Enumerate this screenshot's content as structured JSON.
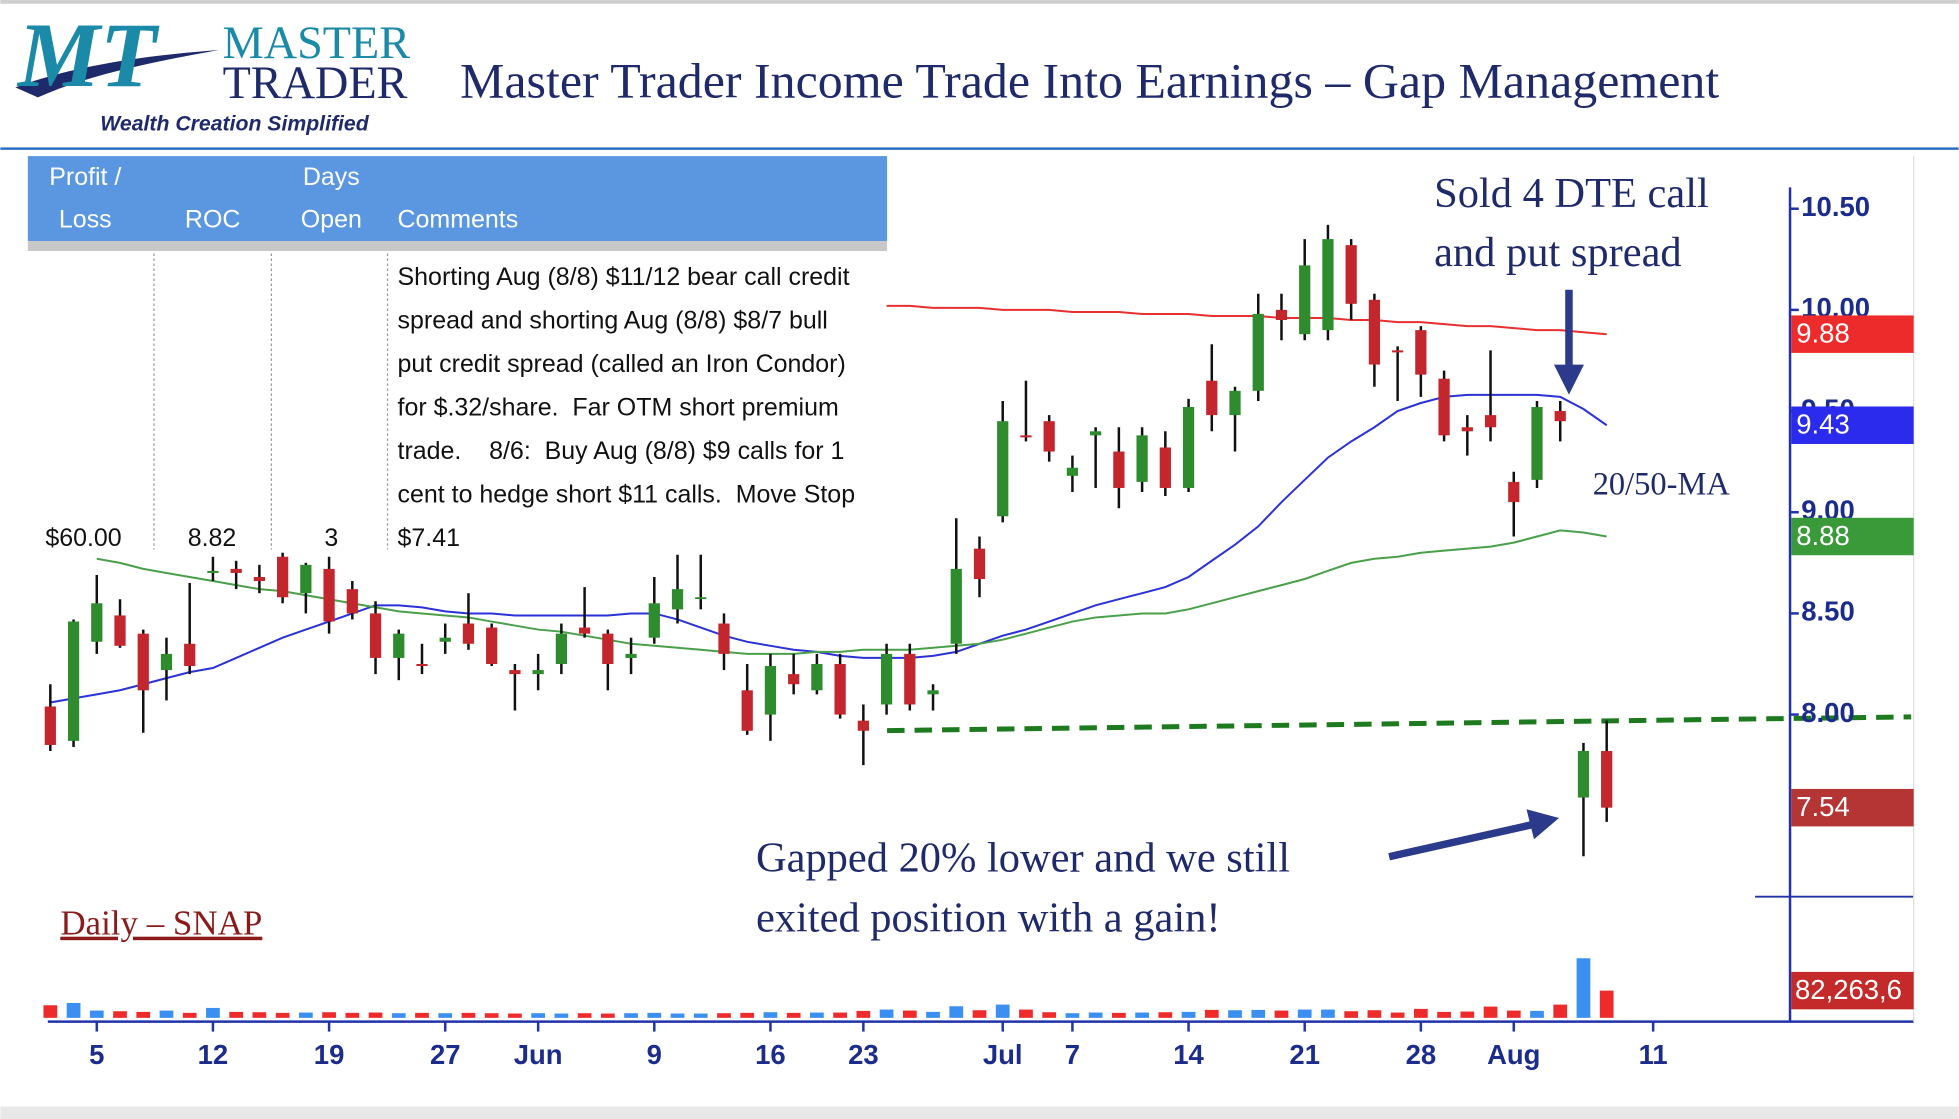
{
  "header": {
    "logo_mark": "MT",
    "logo_top": "MASTER",
    "logo_bottom": "TRADER",
    "tagline": "Wealth Creation Simplified",
    "title": "Master Trader Income Trade Into Earnings – Gap Management"
  },
  "table": {
    "headers": [
      [
        "Profit /",
        "Loss"
      ],
      [
        "ROC"
      ],
      [
        "Days",
        "Open"
      ],
      [
        "Comments"
      ]
    ],
    "row": [
      "$60.00",
      "8.82",
      "3"
    ],
    "comment_lines": [
      "Shorting Aug (8/8) $11/12 bear call credit",
      "spread and shorting Aug (8/8) $8/7 bull",
      "put credit spread (called an Iron Condor)",
      "for $.32/share.  Far OTM short premium",
      "trade.    8/6:  Buy Aug (8/8) $9 calls for 1",
      "cent to hedge short $11 calls.  Move Stop",
      "$7.41"
    ]
  },
  "chart_data": {
    "type": "candlestick",
    "label": "Daily – SNAP",
    "annotations": {
      "sold": [
        "Sold 4 DTE call",
        "and put spread"
      ],
      "ma": "20/50-MA",
      "gap": [
        "Gapped 20% lower and we still",
        "exited position with a gain!"
      ]
    },
    "categories": [
      null,
      null,
      "5",
      null,
      null,
      null,
      null,
      "12",
      null,
      null,
      null,
      null,
      "19",
      null,
      null,
      null,
      null,
      "27",
      null,
      null,
      null,
      "Jun",
      null,
      null,
      null,
      null,
      "9",
      null,
      null,
      null,
      null,
      "16",
      null,
      null,
      null,
      "23",
      null,
      null,
      null,
      null,
      null,
      "Jul",
      null,
      null,
      "7",
      null,
      null,
      null,
      null,
      "14",
      null,
      null,
      null,
      null,
      "21",
      null,
      null,
      null,
      null,
      "28",
      null,
      null,
      null,
      "Aug",
      null,
      null,
      null,
      null,
      null,
      "11",
      null,
      null,
      null,
      null,
      null
    ],
    "open": [
      8.04,
      7.87,
      8.36,
      8.49,
      8.4,
      8.22,
      8.35,
      8.7,
      8.72,
      8.68,
      8.78,
      8.6,
      8.72,
      8.62,
      8.5,
      8.28,
      8.25,
      8.36,
      8.45,
      8.43,
      8.22,
      8.2,
      8.25,
      8.43,
      8.4,
      8.28,
      8.38,
      8.52,
      8.58,
      8.45,
      8.12,
      8.0,
      8.2,
      8.12,
      8.25,
      7.97,
      8.05,
      8.3,
      8.1,
      8.35,
      8.82,
      8.98,
      9.38,
      9.45,
      9.18,
      9.38,
      9.3,
      9.15,
      9.32,
      9.12,
      9.65,
      9.48,
      9.6,
      10.0,
      9.88,
      9.9,
      10.32,
      10.05,
      9.8,
      9.9,
      9.66,
      9.42,
      9.48,
      9.15,
      9.16,
      9.5,
      7.59,
      7.82,
      null,
      null,
      null,
      null,
      null,
      null,
      null
    ],
    "high": [
      8.15,
      8.47,
      8.69,
      8.57,
      8.42,
      8.38,
      8.65,
      8.78,
      8.76,
      8.74,
      8.8,
      8.75,
      8.78,
      8.66,
      8.56,
      8.42,
      8.35,
      8.45,
      8.6,
      8.45,
      8.25,
      8.3,
      8.45,
      8.63,
      8.42,
      8.38,
      8.68,
      8.79,
      8.79,
      8.5,
      8.25,
      8.3,
      8.3,
      8.3,
      8.3,
      8.05,
      8.35,
      8.35,
      8.15,
      8.97,
      8.88,
      9.55,
      9.65,
      9.48,
      9.28,
      9.42,
      9.42,
      9.42,
      9.4,
      9.56,
      9.83,
      9.62,
      10.08,
      10.08,
      10.35,
      10.42,
      10.35,
      10.08,
      9.82,
      9.92,
      9.7,
      9.48,
      9.8,
      9.2,
      9.55,
      9.55,
      7.86,
      7.97,
      null,
      null,
      null,
      null,
      null,
      null,
      null
    ],
    "low": [
      7.82,
      7.84,
      8.3,
      8.33,
      7.91,
      8.07,
      8.2,
      8.66,
      8.62,
      8.6,
      8.55,
      8.5,
      8.4,
      8.47,
      8.2,
      8.17,
      8.2,
      8.3,
      8.32,
      8.24,
      8.02,
      8.12,
      8.2,
      8.38,
      8.12,
      8.2,
      8.35,
      8.45,
      8.52,
      8.22,
      7.9,
      7.87,
      8.1,
      8.1,
      7.98,
      7.75,
      8.0,
      8.02,
      8.02,
      8.3,
      8.58,
      8.95,
      9.35,
      9.25,
      9.1,
      9.12,
      9.02,
      9.1,
      9.08,
      9.1,
      9.4,
      9.3,
      9.55,
      9.85,
      9.85,
      9.85,
      9.95,
      9.62,
      9.55,
      9.57,
      9.35,
      9.28,
      9.35,
      8.88,
      9.12,
      9.35,
      7.3,
      7.47,
      null,
      null,
      null,
      null,
      null,
      null,
      null
    ],
    "close": [
      7.85,
      8.46,
      8.55,
      8.34,
      8.12,
      8.3,
      8.24,
      8.71,
      8.7,
      8.66,
      8.58,
      8.74,
      8.46,
      8.5,
      8.28,
      8.4,
      8.24,
      8.38,
      8.35,
      8.25,
      8.2,
      8.22,
      8.4,
      8.4,
      8.25,
      8.3,
      8.55,
      8.62,
      8.58,
      8.3,
      7.92,
      8.24,
      8.15,
      8.25,
      8.0,
      7.92,
      8.3,
      8.05,
      8.12,
      8.72,
      8.67,
      9.45,
      9.37,
      9.3,
      9.22,
      9.4,
      9.12,
      9.38,
      9.12,
      9.52,
      9.48,
      9.6,
      9.98,
      9.95,
      10.22,
      10.35,
      10.03,
      9.73,
      9.79,
      9.68,
      9.38,
      9.4,
      9.42,
      9.05,
      9.52,
      9.45,
      7.82,
      7.54,
      null,
      null,
      null,
      null,
      null,
      null,
      null
    ],
    "up_color": "#2e8b2e",
    "down_color": "#c3262c",
    "moving_averages": [
      {
        "color": "#2a32d8",
        "values": [
          8.06,
          8.08,
          8.1,
          8.12,
          8.15,
          8.18,
          8.21,
          8.23,
          8.28,
          8.33,
          8.38,
          8.42,
          8.46,
          8.5,
          8.54,
          8.54,
          8.53,
          8.51,
          8.5,
          8.5,
          8.49,
          8.49,
          8.49,
          8.49,
          8.49,
          8.5,
          8.5,
          8.47,
          8.43,
          8.39,
          8.36,
          8.34,
          8.32,
          8.31,
          8.29,
          8.28,
          8.28,
          8.28,
          8.29,
          8.31,
          8.35,
          8.39,
          8.42,
          8.46,
          8.5,
          8.54,
          8.57,
          8.6,
          8.63,
          8.68,
          8.76,
          8.84,
          8.93,
          9.05,
          9.16,
          9.27,
          9.35,
          9.42,
          9.5,
          9.54,
          9.57,
          9.58,
          9.58,
          9.58,
          9.58,
          9.57,
          9.51,
          9.43,
          null,
          null,
          null,
          null,
          null,
          null,
          null
        ]
      },
      {
        "color": "#4aa04a",
        "values": [
          null,
          null,
          8.77,
          8.75,
          8.72,
          8.7,
          8.68,
          8.66,
          8.64,
          8.62,
          8.61,
          8.59,
          8.57,
          8.55,
          8.53,
          8.51,
          8.5,
          8.49,
          8.48,
          8.46,
          8.44,
          8.42,
          8.41,
          8.39,
          8.37,
          8.35,
          8.34,
          8.33,
          8.32,
          8.31,
          8.3,
          8.3,
          8.3,
          8.31,
          8.31,
          8.32,
          8.32,
          8.32,
          8.33,
          8.34,
          8.35,
          8.37,
          8.4,
          8.43,
          8.46,
          8.48,
          8.49,
          8.5,
          8.5,
          8.52,
          8.55,
          8.58,
          8.61,
          8.64,
          8.67,
          8.71,
          8.75,
          8.77,
          8.78,
          8.8,
          8.81,
          8.82,
          8.83,
          8.85,
          8.88,
          8.91,
          8.9,
          8.88,
          null,
          null,
          null,
          null,
          null,
          null,
          null
        ]
      },
      {
        "color": "#e83030",
        "values": [
          null,
          null,
          null,
          null,
          null,
          null,
          null,
          null,
          null,
          null,
          null,
          null,
          null,
          null,
          null,
          null,
          null,
          null,
          null,
          null,
          null,
          null,
          null,
          null,
          null,
          null,
          null,
          null,
          null,
          null,
          null,
          null,
          null,
          null,
          null,
          null,
          10.02,
          10.02,
          10.01,
          10.01,
          10.01,
          10.0,
          10.0,
          10.0,
          9.99,
          9.99,
          9.99,
          9.98,
          9.98,
          9.98,
          9.97,
          9.97,
          9.97,
          9.96,
          9.96,
          9.96,
          9.95,
          9.95,
          9.94,
          9.94,
          9.93,
          9.92,
          9.92,
          9.91,
          9.9,
          9.9,
          9.89,
          9.88,
          null,
          null,
          null,
          null,
          null,
          null,
          null
        ]
      }
    ],
    "ylim": [
      7.1,
      10.76
    ],
    "yticks": [
      {
        "value": 8,
        "label": "8.00"
      },
      {
        "value": 8.5,
        "label": "8.50"
      },
      {
        "value": 9,
        "label": "9.00"
      },
      {
        "value": 9.5,
        "label": "9.50"
      },
      {
        "value": 10,
        "label": "10.00"
      },
      {
        "value": 10.5,
        "label": "10.50"
      }
    ],
    "price_labels": [
      {
        "value": 9.88,
        "color": "#ee2b2b"
      },
      {
        "value": 9.43,
        "color": "#2b2bee"
      },
      {
        "value": 8.88,
        "color": "#3a9a3a"
      },
      {
        "value": 7.54,
        "color": "#b53434"
      }
    ],
    "volume": {
      "values": [
        38000000,
        45000000,
        22000000,
        20000000,
        18000000,
        22000000,
        15000000,
        30000000,
        18000000,
        17000000,
        15000000,
        16000000,
        17000000,
        15000000,
        16000000,
        14000000,
        15000000,
        14000000,
        15000000,
        14000000,
        13000000,
        14000000,
        13000000,
        14000000,
        13000000,
        14000000,
        15000000,
        13000000,
        13000000,
        14000000,
        15000000,
        17000000,
        15000000,
        16000000,
        16000000,
        21000000,
        25000000,
        22000000,
        18000000,
        35000000,
        23000000,
        40000000,
        25000000,
        17000000,
        14000000,
        16000000,
        15000000,
        16000000,
        17000000,
        18000000,
        24000000,
        23000000,
        24000000,
        22000000,
        25000000,
        25000000,
        20000000,
        23000000,
        16000000,
        27000000,
        18000000,
        19000000,
        34000000,
        22000000,
        21000000,
        40000000,
        180000000,
        82263600,
        null,
        null,
        null,
        null,
        null,
        null,
        null
      ],
      "ylim": [
        0,
        200000000
      ],
      "up_color": "#3b8ff0",
      "down_color": "#ee2b2b",
      "last_label": "82,263,6",
      "last_label_color": "#c42a2a"
    }
  }
}
